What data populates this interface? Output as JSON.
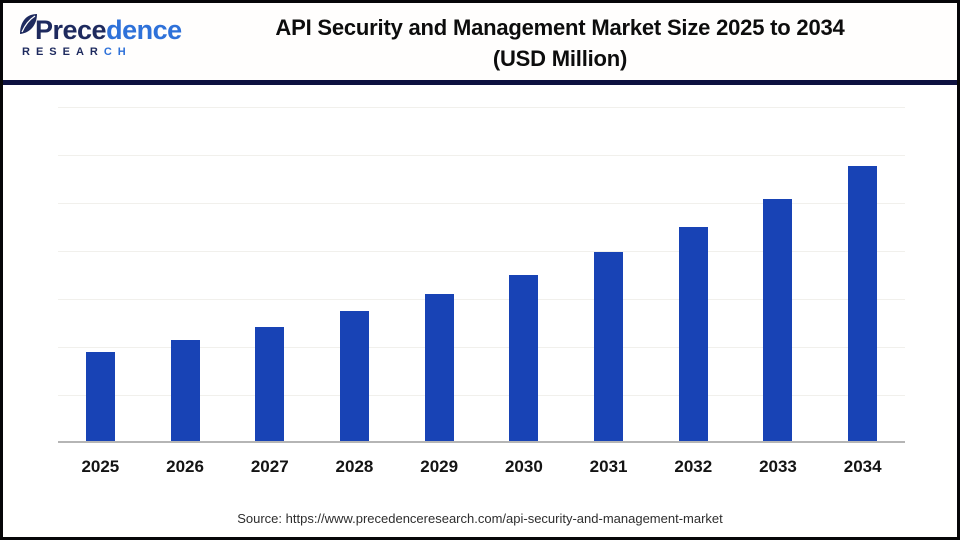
{
  "logo": {
    "brand_dark": "Prece",
    "brand_light": "dence",
    "sub_dark": "RESEAR",
    "sub_light": "CH"
  },
  "header": {
    "title_line1": "API Security and Management Market Size 2025 to 2034",
    "title_line2": "(USD Million)"
  },
  "footer": {
    "source": "Source: https://www.precedenceresearch.com/api-security-and-management-market"
  },
  "colors": {
    "bar": "#1843b5",
    "brand_navy": "#1e2a5e",
    "brand_blue": "#2e71d9",
    "divider_navy": "#0d1140",
    "axis_gray": "#b5b5b5",
    "grid_gray": "#f1f0ec"
  },
  "chart_data": {
    "type": "bar",
    "title": "API Security and Management Market Size 2025 to 2034 (USD Million)",
    "categories": [
      "2025",
      "2026",
      "2027",
      "2028",
      "2029",
      "2030",
      "2031",
      "2032",
      "2033",
      "2034"
    ],
    "values": [
      2728,
      3092,
      3505,
      3972,
      4502,
      5103,
      5783,
      6555,
      7429,
      8420
    ],
    "values_estimated": true,
    "unit": "USD Million",
    "xlabel": "",
    "ylabel": "",
    "ylim": [
      0,
      10300
    ],
    "gridlines": 7,
    "y_axis_labels_visible": false,
    "data_labels_visible": false,
    "legend": "none"
  }
}
